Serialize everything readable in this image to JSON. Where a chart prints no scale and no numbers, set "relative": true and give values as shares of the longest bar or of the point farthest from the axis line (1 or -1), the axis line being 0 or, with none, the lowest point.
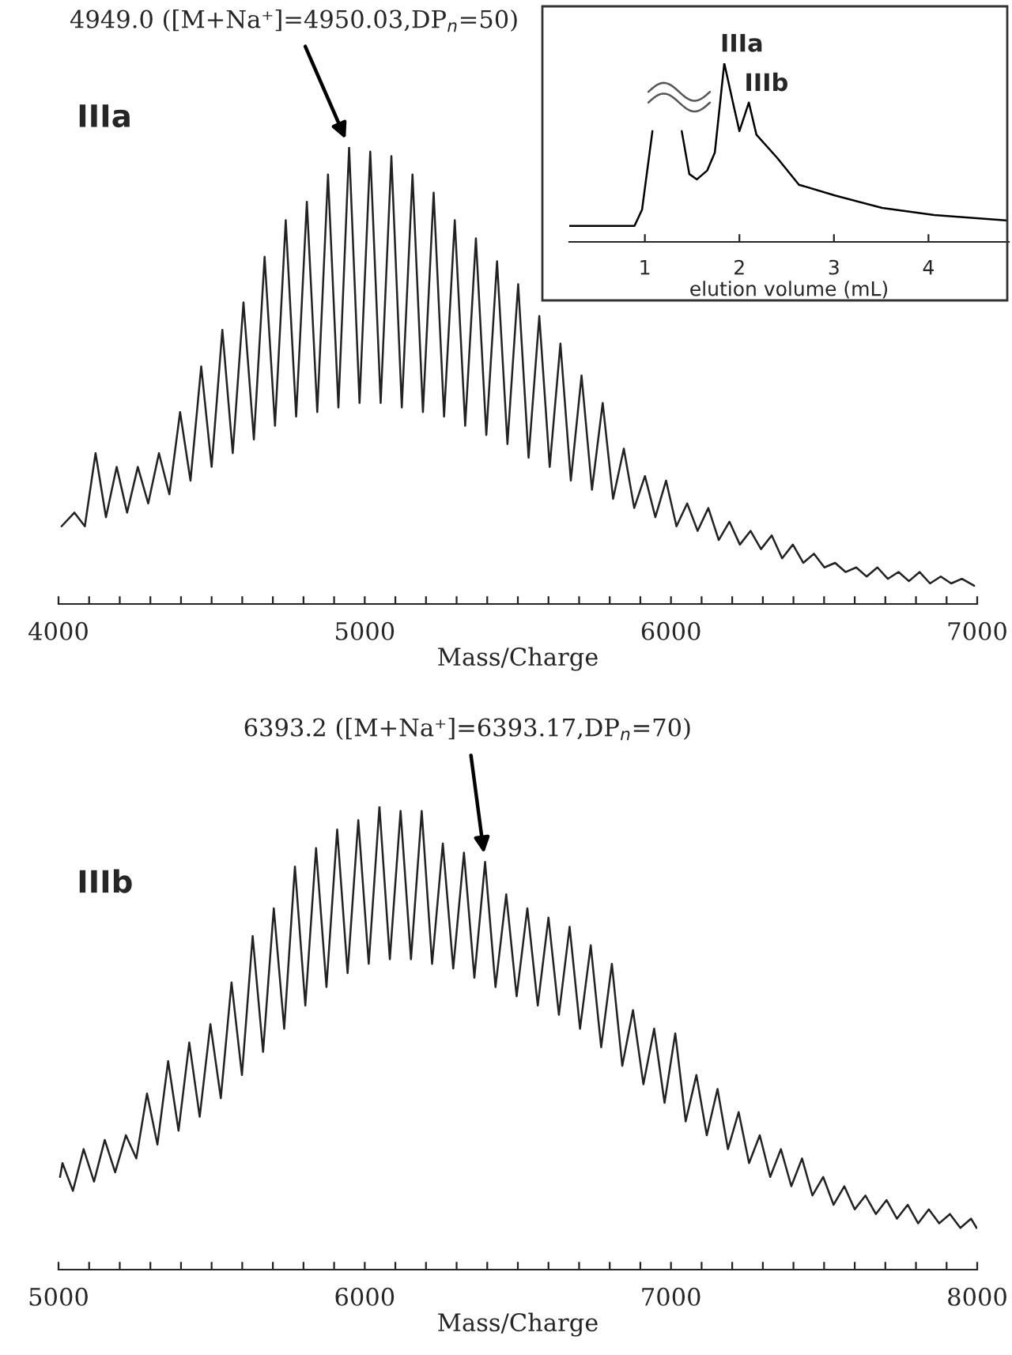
{
  "chart_data": [
    {
      "type": "line",
      "title": "IIIa",
      "xlabel": "Mass/Charge",
      "relative": true,
      "xlim": [
        4000,
        7000
      ],
      "xticks": [
        4000,
        {
          "value": 4100,
          "label": null
        },
        {
          "value": 4200,
          "label": null
        },
        {
          "value": 4300,
          "label": null
        },
        {
          "value": 4400,
          "label": null
        },
        {
          "value": 4500,
          "label": null
        },
        {
          "value": 4600,
          "label": null
        },
        {
          "value": 4700,
          "label": null
        },
        {
          "value": 4800,
          "label": null
        },
        {
          "value": 4900,
          "label": null
        },
        5000,
        {
          "value": 5100,
          "label": null
        },
        {
          "value": 5200,
          "label": null
        },
        {
          "value": 5300,
          "label": null
        },
        {
          "value": 5400,
          "label": null
        },
        {
          "value": 5500,
          "label": null
        },
        {
          "value": 5600,
          "label": null
        },
        {
          "value": 5700,
          "label": null
        },
        {
          "value": 5800,
          "label": null
        },
        {
          "value": 5900,
          "label": null
        },
        6000,
        {
          "value": 6100,
          "label": null
        },
        {
          "value": 6200,
          "label": null
        },
        {
          "value": 6300,
          "label": null
        },
        {
          "value": 6400,
          "label": null
        },
        {
          "value": 6500,
          "label": null
        },
        {
          "value": 6600,
          "label": null
        },
        {
          "value": 6700,
          "label": null
        },
        {
          "value": 6800,
          "label": null
        },
        {
          "value": 6900,
          "label": null
        },
        7000
      ],
      "tick_labels": "x",
      "grid": false,
      "marker": "none",
      "line_style": "solid",
      "annotations": [
        {
          "text": "4949.0 ([M+Na⁺]=4950.03,DP$_{n}$=50)",
          "x": 4949,
          "y": 1.0
        }
      ],
      "series": [
        {
          "color": "#222222",
          "x": [
            4010,
            4052,
            4086,
            4121,
            4155,
            4190,
            4224,
            4259,
            4293,
            4328,
            4362,
            4397,
            4431,
            4466,
            4500,
            4535,
            4569,
            4604,
            4638,
            4673,
            4707,
            4742,
            4776,
            4811,
            4845,
            4880,
            4914,
            4949,
            4983,
            5018,
            5052,
            5087,
            5121,
            5156,
            5190,
            5225,
            5259,
            5294,
            5328,
            5363,
            5397,
            5432,
            5466,
            5501,
            5535,
            5570,
            5604,
            5639,
            5673,
            5708,
            5742,
            5777,
            5811,
            5846,
            5880,
            5915,
            5949,
            5984,
            6018,
            6053,
            6087,
            6122,
            6156,
            6191,
            6225,
            6260,
            6294,
            6329,
            6363,
            6398,
            6432,
            6467,
            6501,
            6536,
            6570,
            6605,
            6639,
            6674,
            6708,
            6743,
            6777,
            6812,
            6846,
            6881,
            6915,
            6950,
            6990
          ],
          "values": [
            0.17,
            0.2,
            0.17,
            0.33,
            0.19,
            0.3,
            0.2,
            0.3,
            0.22,
            0.33,
            0.24,
            0.42,
            0.27,
            0.52,
            0.3,
            0.6,
            0.33,
            0.66,
            0.36,
            0.76,
            0.39,
            0.84,
            0.41,
            0.88,
            0.42,
            0.94,
            0.43,
            1.0,
            0.44,
            0.99,
            0.44,
            0.98,
            0.43,
            0.94,
            0.42,
            0.9,
            0.41,
            0.84,
            0.39,
            0.8,
            0.37,
            0.75,
            0.35,
            0.7,
            0.32,
            0.63,
            0.3,
            0.57,
            0.27,
            0.5,
            0.25,
            0.44,
            0.23,
            0.34,
            0.21,
            0.28,
            0.19,
            0.27,
            0.17,
            0.22,
            0.16,
            0.21,
            0.14,
            0.18,
            0.13,
            0.16,
            0.12,
            0.15,
            0.1,
            0.13,
            0.09,
            0.11,
            0.08,
            0.09,
            0.07,
            0.08,
            0.06,
            0.08,
            0.055,
            0.07,
            0.05,
            0.07,
            0.045,
            0.06,
            0.045,
            0.055,
            0.04
          ]
        }
      ]
    },
    {
      "type": "line",
      "xlabel": "elution volume (mL)",
      "relative": true,
      "xlim": [
        0.2,
        4.85
      ],
      "xticks": [
        1,
        2,
        3,
        4
      ],
      "tick_labels": "x",
      "grid": false,
      "marker": "none",
      "line_style": "solid",
      "annotations": [
        {
          "text": "IIIa",
          "x": 1.84,
          "y": 1.0
        },
        {
          "text": "IIIb",
          "x": 2.1,
          "y": 0.78
        }
      ],
      "series": [
        {
          "color": "#000000",
          "x": [
            0.2,
            0.89,
            0.97,
            1.08,
            1.2,
            1.39,
            1.47,
            1.55,
            1.66,
            1.74,
            1.84,
            1.94,
            2.0,
            2.1,
            2.18,
            2.4,
            2.63,
            3.01,
            3.51,
            4.06,
            4.83
          ],
          "values": [
            0.09,
            0.09,
            0.18,
            0.62,
            null,
            0.62,
            0.38,
            0.35,
            0.4,
            0.5,
            1.0,
            0.76,
            0.62,
            0.78,
            0.6,
            0.47,
            0.32,
            0.26,
            0.19,
            0.15,
            0.12
          ]
        }
      ]
    },
    {
      "type": "line",
      "title": "IIIb",
      "xlabel": "Mass/Charge",
      "relative": true,
      "xlim": [
        5000,
        8000
      ],
      "xticks": [
        5000,
        {
          "value": 5100,
          "label": null
        },
        {
          "value": 5200,
          "label": null
        },
        {
          "value": 5300,
          "label": null
        },
        {
          "value": 5400,
          "label": null
        },
        {
          "value": 5500,
          "label": null
        },
        {
          "value": 5600,
          "label": null
        },
        {
          "value": 5700,
          "label": null
        },
        {
          "value": 5800,
          "label": null
        },
        {
          "value": 5900,
          "label": null
        },
        6000,
        {
          "value": 6100,
          "label": null
        },
        {
          "value": 6200,
          "label": null
        },
        {
          "value": 6300,
          "label": null
        },
        {
          "value": 6400,
          "label": null
        },
        {
          "value": 6500,
          "label": null
        },
        {
          "value": 6600,
          "label": null
        },
        {
          "value": 6700,
          "label": null
        },
        {
          "value": 6800,
          "label": null
        },
        {
          "value": 6900,
          "label": null
        },
        7000,
        {
          "value": 7100,
          "label": null
        },
        {
          "value": 7200,
          "label": null
        },
        {
          "value": 7300,
          "label": null
        },
        {
          "value": 7400,
          "label": null
        },
        {
          "value": 7500,
          "label": null
        },
        {
          "value": 7600,
          "label": null
        },
        {
          "value": 7700,
          "label": null
        },
        {
          "value": 7800,
          "label": null
        },
        {
          "value": 7900,
          "label": null
        },
        8000
      ],
      "tick_labels": "x",
      "grid": false,
      "marker": "none",
      "line_style": "solid",
      "annotations": [
        {
          "text": "6393.2 ([M+Na⁺]=6393.17,DP$_{n}$=70)",
          "x": 6393,
          "y": 0.88
        }
      ],
      "series": [
        {
          "color": "#222222",
          "x": [
            5005,
            5013,
            5047,
            5082,
            5116,
            5151,
            5185,
            5220,
            5254,
            5289,
            5323,
            5358,
            5392,
            5427,
            5461,
            5496,
            5530,
            5565,
            5599,
            5634,
            5668,
            5703,
            5737,
            5772,
            5806,
            5841,
            5875,
            5910,
            5944,
            5979,
            6013,
            6048,
            6082,
            6117,
            6151,
            6186,
            6220,
            6255,
            6289,
            6324,
            6358,
            6393,
            6427,
            6462,
            6496,
            6531,
            6565,
            6600,
            6634,
            6669,
            6703,
            6738,
            6772,
            6807,
            6841,
            6876,
            6910,
            6945,
            6979,
            7014,
            7048,
            7083,
            7117,
            7152,
            7186,
            7221,
            7255,
            7290,
            7324,
            7359,
            7393,
            7428,
            7462,
            7497,
            7531,
            7566,
            7600,
            7635,
            7669,
            7704,
            7738,
            7773,
            7807,
            7842,
            7876,
            7911,
            7945,
            7980,
            7998
          ],
          "values": [
            0.2,
            0.23,
            0.17,
            0.26,
            0.19,
            0.28,
            0.21,
            0.29,
            0.24,
            0.38,
            0.27,
            0.45,
            0.3,
            0.49,
            0.33,
            0.53,
            0.37,
            0.62,
            0.42,
            0.72,
            0.47,
            0.78,
            0.52,
            0.87,
            0.57,
            0.91,
            0.61,
            0.95,
            0.64,
            0.97,
            0.66,
            1.0,
            0.67,
            0.99,
            0.67,
            0.99,
            0.66,
            0.92,
            0.65,
            0.9,
            0.63,
            0.88,
            0.61,
            0.81,
            0.59,
            0.78,
            0.57,
            0.76,
            0.55,
            0.74,
            0.52,
            0.7,
            0.48,
            0.66,
            0.44,
            0.56,
            0.4,
            0.52,
            0.36,
            0.51,
            0.32,
            0.42,
            0.29,
            0.39,
            0.26,
            0.34,
            0.23,
            0.29,
            0.2,
            0.26,
            0.18,
            0.24,
            0.16,
            0.2,
            0.14,
            0.18,
            0.13,
            0.16,
            0.12,
            0.15,
            0.11,
            0.14,
            0.1,
            0.13,
            0.1,
            0.12,
            0.09,
            0.11,
            0.09
          ]
        }
      ]
    }
  ]
}
